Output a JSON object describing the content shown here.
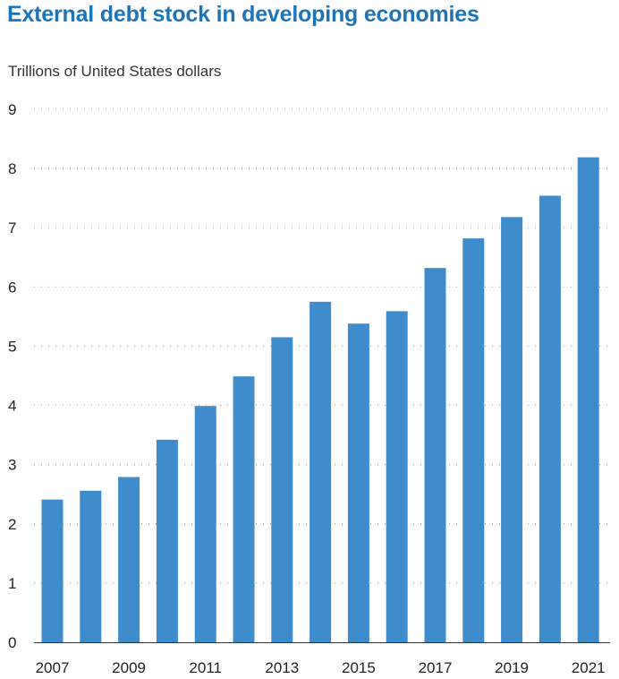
{
  "chart_data": {
    "type": "bar",
    "title": "External debt stock in developing economies",
    "ylabel": "Trillions of United States dollars",
    "xlabel": "",
    "categories": [
      "2007",
      "2008",
      "2009",
      "2010",
      "2011",
      "2012",
      "2013",
      "2014",
      "2015",
      "2016",
      "2017",
      "2018",
      "2019",
      "2020",
      "2021"
    ],
    "values": [
      2.41,
      2.56,
      2.79,
      3.42,
      3.99,
      4.49,
      5.15,
      5.75,
      5.38,
      5.59,
      6.32,
      6.82,
      7.18,
      7.54,
      8.19
    ],
    "ylim": [
      0,
      9
    ],
    "yticks": [
      "0",
      "1",
      "2",
      "3",
      "4",
      "5",
      "6",
      "7",
      "8",
      "9"
    ],
    "xtick_labels": [
      "2007",
      "2009",
      "2011",
      "2013",
      "2015",
      "2017",
      "2019",
      "2021"
    ],
    "grid": "horizontal dotted",
    "bar_color": "#3f8ccc",
    "title_color": "#1d74b6"
  }
}
